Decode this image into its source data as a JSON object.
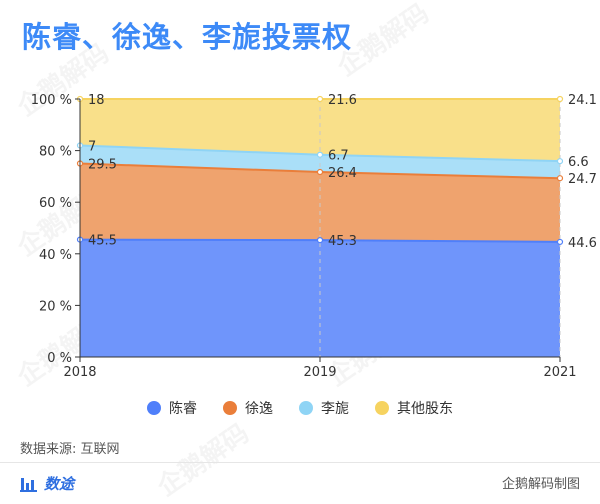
{
  "title": "陈睿、徐逸、李旎投票权",
  "source": "数据来源: 互联网",
  "brand": "数途",
  "credit": "企鹅解码制图",
  "watermark": "企鹅解码",
  "chart_data": {
    "type": "area",
    "stacked": true,
    "x": [
      "2018",
      "2019",
      "2021"
    ],
    "ylim": [
      0,
      100
    ],
    "y_ticks": [
      "0 %",
      "20 %",
      "40 %",
      "60 %",
      "80 %",
      "100 %"
    ],
    "series": [
      {
        "name": "陈睿",
        "values": [
          45.5,
          45.3,
          44.6
        ],
        "color": "#4f7ffa",
        "fill": "#6f95fb"
      },
      {
        "name": "徐逸",
        "values": [
          29.5,
          26.4,
          24.7
        ],
        "color": "#ea7e3a",
        "fill": "#efa36e"
      },
      {
        "name": "李旎",
        "values": [
          7,
          6.7,
          6.6
        ],
        "color": "#8fd4f5",
        "fill": "#aadff8"
      },
      {
        "name": "其他股东",
        "values": [
          18,
          21.6,
          24.1
        ],
        "color": "#f6d360",
        "fill": "#f9e08a"
      }
    ],
    "legend": "bottom",
    "grid": "vertical-dashed"
  }
}
